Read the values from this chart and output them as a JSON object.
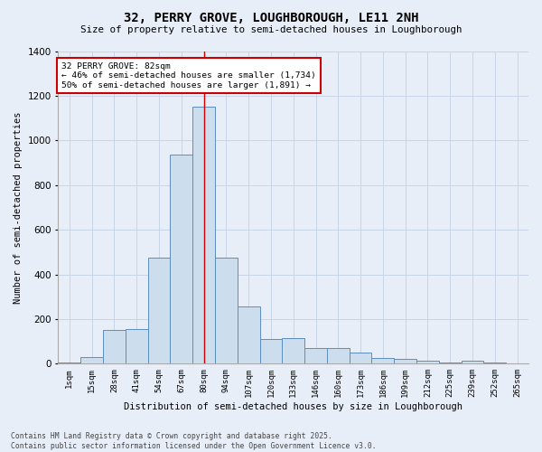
{
  "title": "32, PERRY GROVE, LOUGHBOROUGH, LE11 2NH",
  "subtitle": "Size of property relative to semi-detached houses in Loughborough",
  "xlabel": "Distribution of semi-detached houses by size in Loughborough",
  "ylabel": "Number of semi-detached properties",
  "footer_line1": "Contains HM Land Registry data © Crown copyright and database right 2025.",
  "footer_line2": "Contains public sector information licensed under the Open Government Licence v3.0.",
  "categories": [
    "1sqm",
    "15sqm",
    "28sqm",
    "41sqm",
    "54sqm",
    "67sqm",
    "80sqm",
    "94sqm",
    "107sqm",
    "120sqm",
    "133sqm",
    "146sqm",
    "160sqm",
    "173sqm",
    "186sqm",
    "199sqm",
    "212sqm",
    "225sqm",
    "239sqm",
    "252sqm",
    "265sqm"
  ],
  "values": [
    5,
    30,
    150,
    155,
    475,
    935,
    1150,
    475,
    255,
    110,
    115,
    70,
    70,
    50,
    25,
    20,
    15,
    5,
    15,
    5,
    2
  ],
  "bar_color": "#ccdded",
  "bar_edge_color": "#5b8ec4",
  "grid_color": "#c8d4e8",
  "background_color": "#e8eef8",
  "vline_x": 6,
  "vline_color": "#cc0000",
  "annotation_text": "32 PERRY GROVE: 82sqm\n← 46% of semi-detached houses are smaller (1,734)\n50% of semi-detached houses are larger (1,891) →",
  "annotation_box_color": "white",
  "annotation_box_edge_color": "#cc0000",
  "ylim": [
    0,
    1400
  ],
  "yticks": [
    0,
    200,
    400,
    600,
    800,
    1000,
    1200,
    1400
  ]
}
